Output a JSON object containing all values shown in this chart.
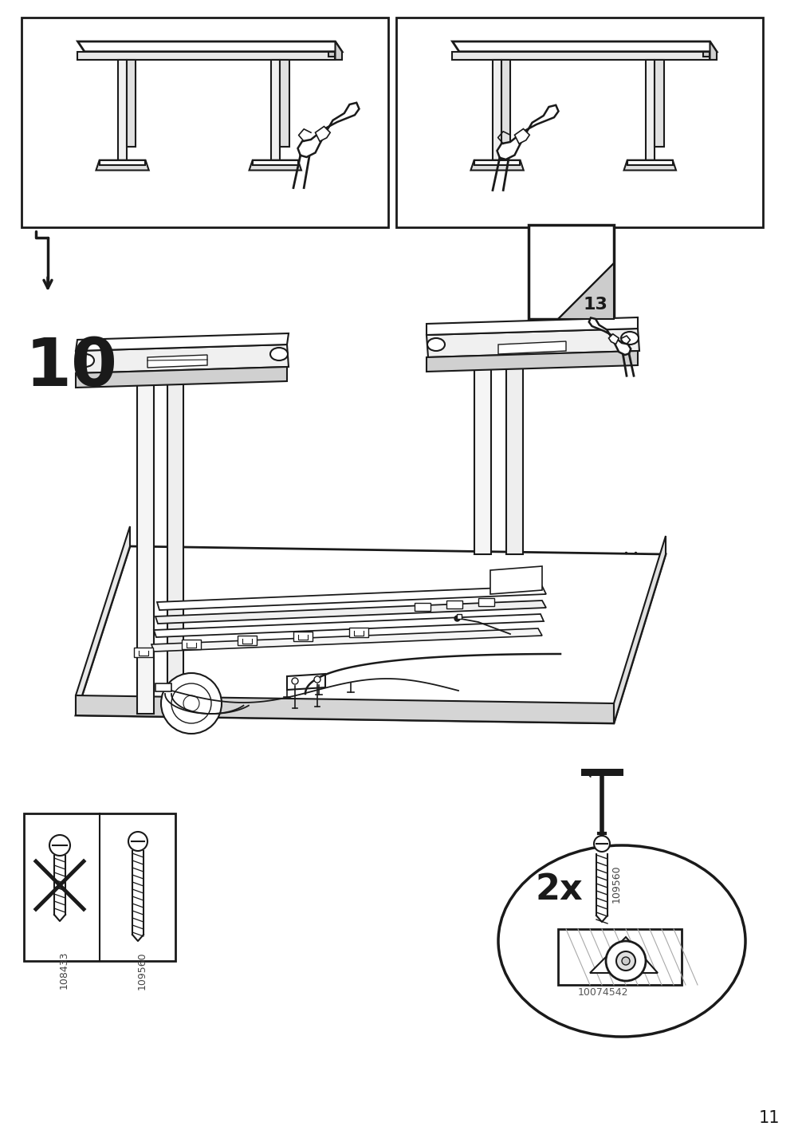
{
  "page_number": "11",
  "background_color": "#ffffff",
  "line_color": "#1a1a1a",
  "step_number": "10",
  "page_ref": "13",
  "part_ids": [
    "108433",
    "109560",
    "10074542"
  ],
  "quantity": "2x",
  "figsize": [
    10.12,
    14.32
  ],
  "dpi": 100
}
